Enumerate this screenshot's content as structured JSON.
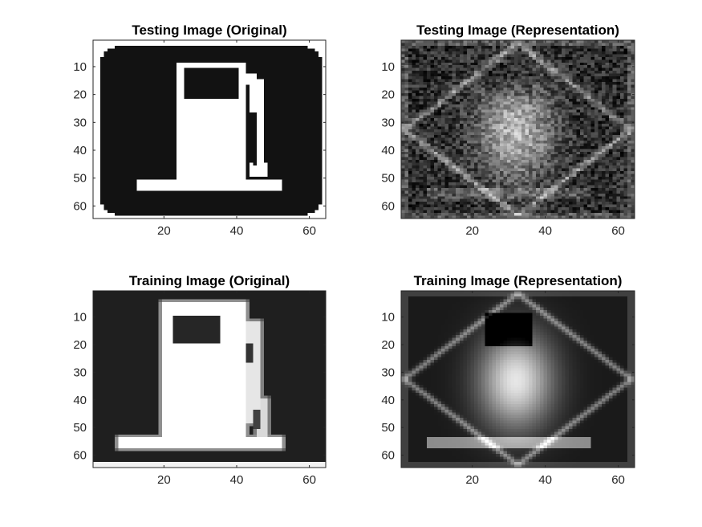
{
  "figure": {
    "background": "#ffffff",
    "colormap": "gray"
  },
  "chart_data": [
    {
      "type": "heatmap",
      "title": "Testing Image (Original)",
      "content": "fuel-pump-sign",
      "style": "sharp",
      "xlim": [
        0.5,
        64.5
      ],
      "ylim": [
        0.5,
        64.5
      ],
      "y_reversed": true,
      "xticks": [
        20,
        40,
        60
      ],
      "yticks": [
        10,
        20,
        30,
        40,
        50,
        60
      ]
    },
    {
      "type": "heatmap",
      "title": "Testing Image (Representation)",
      "content": "fuel-pump-reconstruction",
      "style": "noisy",
      "xlim": [
        0.5,
        64.5
      ],
      "ylim": [
        0.5,
        64.5
      ],
      "y_reversed": true,
      "xticks": [
        20,
        40,
        60
      ],
      "yticks": [
        10,
        20,
        30,
        40,
        50,
        60
      ]
    },
    {
      "type": "heatmap",
      "title": "Training Image (Original)",
      "content": "fuel-pump-photo",
      "style": "soft",
      "xlim": [
        0.5,
        64.5
      ],
      "ylim": [
        0.5,
        64.5
      ],
      "y_reversed": true,
      "xticks": [
        20,
        40,
        60
      ],
      "yticks": [
        10,
        20,
        30,
        40,
        50,
        60
      ]
    },
    {
      "type": "heatmap",
      "title": "Training Image (Representation)",
      "content": "fuel-pump-reconstruction",
      "style": "smooth",
      "xlim": [
        0.5,
        64.5
      ],
      "ylim": [
        0.5,
        64.5
      ],
      "y_reversed": true,
      "xticks": [
        20,
        40,
        60
      ],
      "yticks": [
        10,
        20,
        30,
        40,
        50,
        60
      ]
    }
  ]
}
